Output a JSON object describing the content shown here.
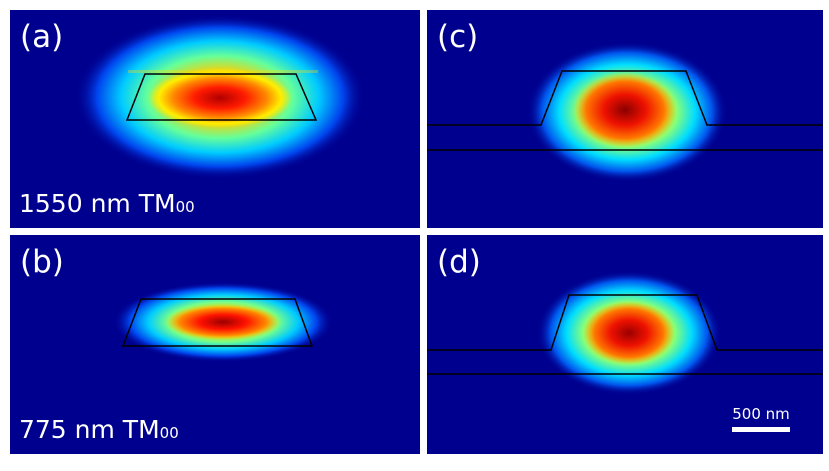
{
  "panels": [
    {
      "id": "a",
      "label": "(a)",
      "mode_text": "1550 nm TM",
      "mode_sub": "00"
    },
    {
      "id": "c",
      "label": "(c)"
    },
    {
      "id": "b",
      "label": "(b)",
      "mode_text": "775 nm TM",
      "mode_sub": "00"
    },
    {
      "id": "d",
      "label": "(d)"
    }
  ],
  "scale_bar": {
    "label": "500 nm"
  },
  "colors": {
    "background": "#00008f",
    "outline": "#000000",
    "text": "#ffffff"
  }
}
